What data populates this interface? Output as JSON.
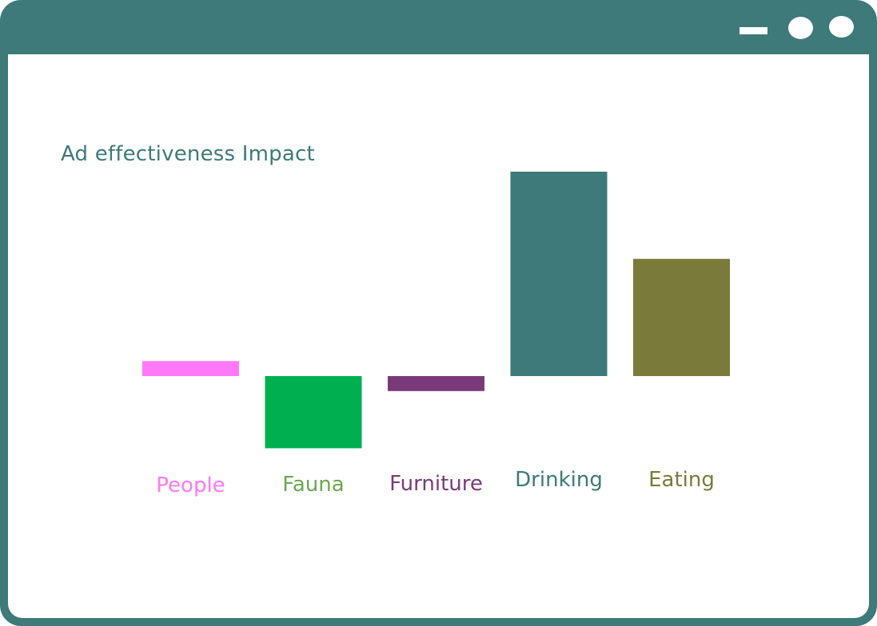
{
  "window": {
    "frame_color": "#3d7a79",
    "controls": [
      "minimize-icon",
      "circle-icon",
      "circle-icon"
    ]
  },
  "chart_data": {
    "type": "bar",
    "title": "Ad effectiveness Impact",
    "xlabel": "",
    "ylabel": "",
    "grid": false,
    "ylim": [
      -1.2,
      3.5
    ],
    "categories": [
      "People",
      "Fauna",
      "Furniture",
      "Drinking",
      "Eating"
    ],
    "values": [
      0.25,
      -1.2,
      -0.25,
      3.4,
      1.95
    ],
    "colors": [
      "#ff79f7",
      "#00b050",
      "#7a3a7a",
      "#3d7a79",
      "#7a7a3a"
    ],
    "label_colors": [
      "#ff79f7",
      "#6aa84f",
      "#7a3a7a",
      "#3d7a79",
      "#7a7a3a"
    ]
  }
}
